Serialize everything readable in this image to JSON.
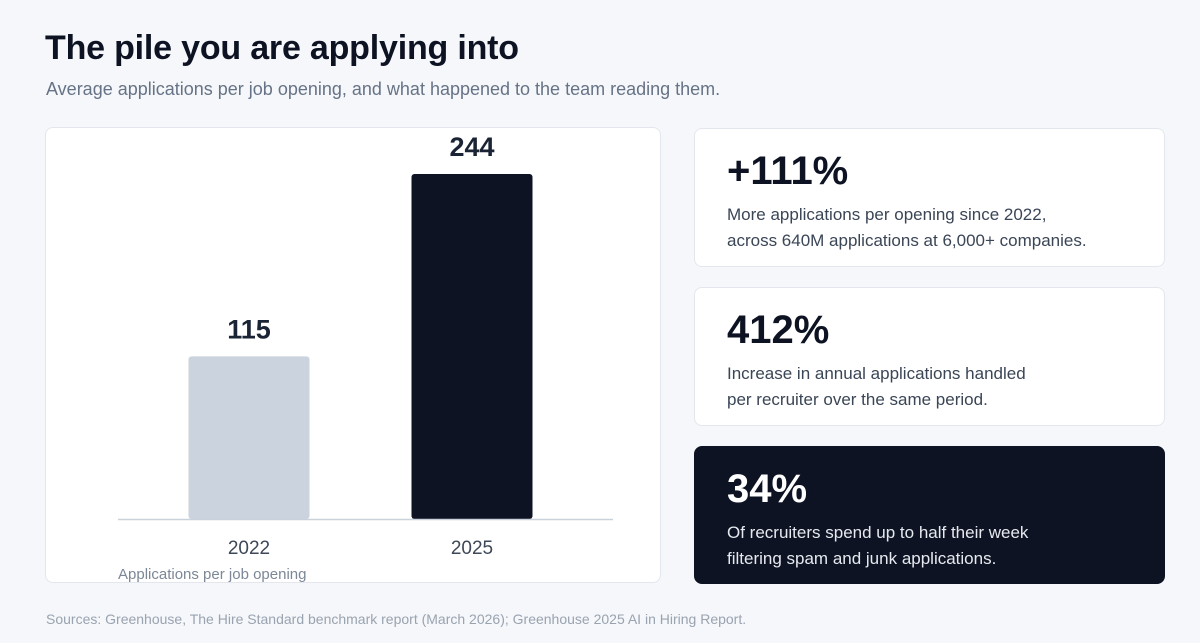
{
  "header": {
    "title": "The pile you are applying into",
    "subtitle": "Average applications per job opening, and what happened to the team reading them."
  },
  "chart_data": {
    "type": "bar",
    "categories": [
      "2022",
      "2025"
    ],
    "values": [
      115,
      244
    ],
    "value_labels": [
      "115",
      "244"
    ],
    "bar_colors": [
      "#cbd3de",
      "#0d1322"
    ],
    "caption": "Applications per job opening",
    "ylim": [
      0,
      244
    ],
    "grid": false,
    "legend": "none"
  },
  "stats": [
    {
      "value": "+111%",
      "lines": [
        "More applications per opening since 2022,",
        "across 640M applications at 6,000+ companies."
      ],
      "theme": "light"
    },
    {
      "value": "412%",
      "lines": [
        "Increase in annual applications handled",
        "per recruiter over the same period."
      ],
      "theme": "light"
    },
    {
      "value": "34%",
      "lines": [
        "Of recruiters spend up to half their week",
        "filtering spam and junk applications."
      ],
      "theme": "dark"
    }
  ],
  "footer": {
    "sources": "Sources: Greenhouse, The Hire Standard benchmark report (March 2026); Greenhouse 2025 AI in Hiring Report."
  },
  "colors": {
    "background": "#f5f7fa",
    "ink": "#0d1322",
    "muted_bar": "#cbd3de",
    "axis": "#c9d1db"
  }
}
